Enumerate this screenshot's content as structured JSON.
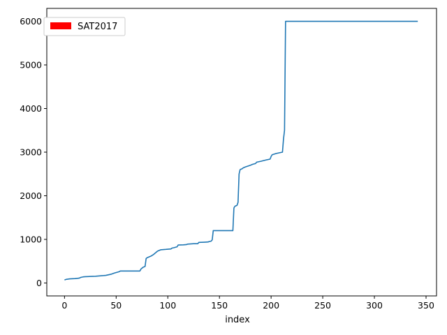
{
  "chart_data": {
    "type": "line",
    "xlabel": "index",
    "ylabel": "",
    "xlim": [
      -17.15,
      360.15
    ],
    "ylim": [
      -296.5,
      6296.5
    ],
    "xticks": [
      0,
      50,
      100,
      150,
      200,
      250,
      300,
      350
    ],
    "yticks": [
      0,
      1000,
      2000,
      3000,
      4000,
      5000,
      6000
    ],
    "grid": false,
    "legend": {
      "placement": "top-left",
      "patch_color": "#ff0000",
      "label": "SAT2017"
    },
    "series": [
      {
        "color": "#1f77b4",
        "x": [
          0,
          2,
          5,
          10,
          14,
          16,
          18,
          20,
          25,
          30,
          35,
          38,
          40,
          45,
          48,
          50,
          53,
          54,
          60,
          65,
          70,
          73,
          74,
          76,
          78,
          79,
          80,
          82,
          84,
          86,
          88,
          90,
          92,
          93,
          95,
          98,
          100,
          103,
          104,
          106,
          109,
          110,
          115,
          118,
          119,
          125,
          129,
          130,
          135,
          139,
          140,
          142,
          143,
          144,
          145,
          150,
          155,
          160,
          163,
          164,
          165,
          167,
          168,
          169,
          170,
          172,
          173,
          175,
          180,
          182,
          185,
          186,
          190,
          195,
          199,
          200,
          201,
          205,
          209,
          211,
          212,
          213,
          214,
          215,
          220,
          250,
          300,
          342
        ],
        "values": [
          70,
          85,
          95,
          100,
          110,
          130,
          140,
          145,
          150,
          155,
          165,
          170,
          175,
          200,
          225,
          240,
          260,
          275,
          275,
          275,
          275,
          275,
          320,
          360,
          380,
          560,
          580,
          600,
          620,
          650,
          690,
          730,
          750,
          760,
          765,
          770,
          775,
          780,
          800,
          810,
          830,
          870,
          875,
          880,
          890,
          900,
          900,
          930,
          935,
          940,
          950,
          960,
          990,
          1200,
          1200,
          1200,
          1200,
          1200,
          1200,
          1720,
          1760,
          1780,
          1850,
          2500,
          2600,
          2620,
          2640,
          2660,
          2700,
          2720,
          2740,
          2770,
          2790,
          2820,
          2840,
          2900,
          2940,
          2970,
          2990,
          3000,
          3300,
          3500,
          6000,
          6000,
          6000,
          6000,
          6000,
          6000
        ]
      }
    ]
  }
}
